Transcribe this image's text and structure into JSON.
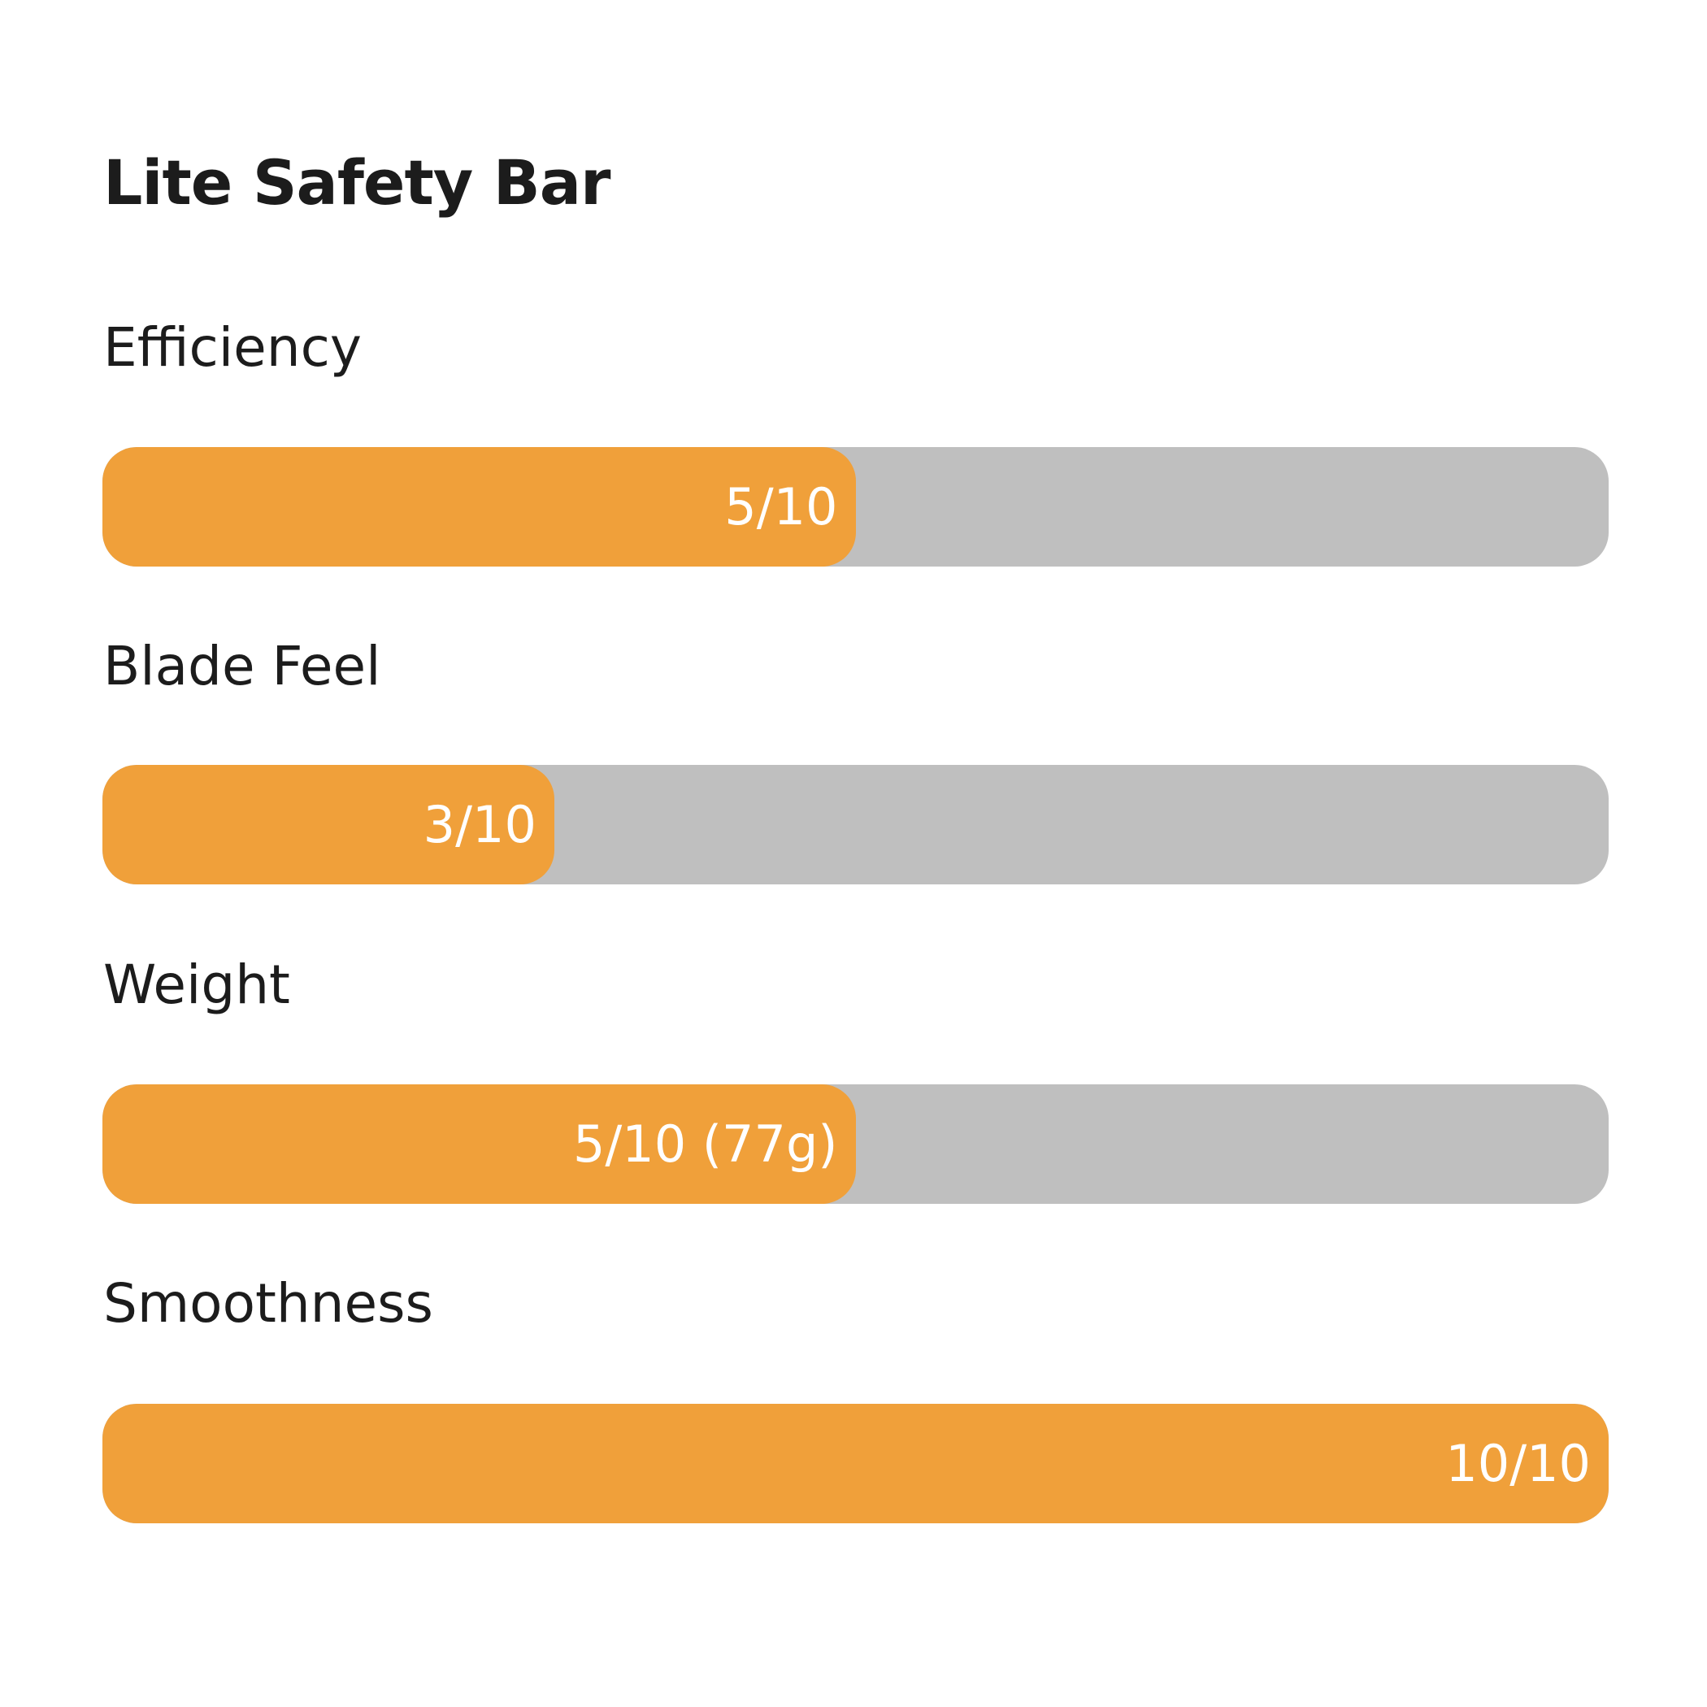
{
  "title": "Lite Safety Bar",
  "max": 10,
  "fill_color": "#f0a03a",
  "track_color": "#bfbfbf",
  "items": [
    {
      "label": "Efficiency",
      "value": 5,
      "value_label": "5/10"
    },
    {
      "label": "Blade Feel",
      "value": 3,
      "value_label": "3/10"
    },
    {
      "label": "Weight",
      "value": 5,
      "value_label": "5/10 (77g)"
    },
    {
      "label": "Smoothness",
      "value": 10,
      "value_label": "10/10"
    }
  ]
}
